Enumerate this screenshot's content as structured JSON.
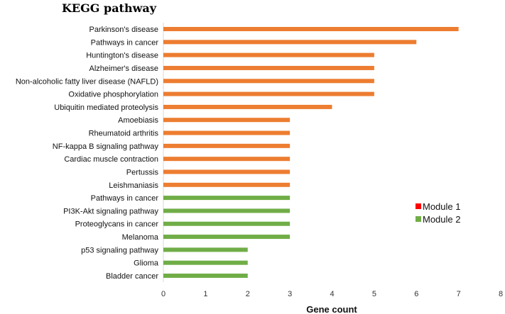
{
  "chart_data": {
    "type": "bar",
    "orientation": "horizontal",
    "title": "KEGG pathway",
    "xlabel": "Gene count",
    "ylabel": "",
    "xlim": [
      0,
      8
    ],
    "xticks": [
      0,
      1,
      2,
      3,
      4,
      5,
      6,
      7,
      8
    ],
    "grid": false,
    "legend_position": "right",
    "legend": [
      {
        "name": "Module 1",
        "color": "#ff0000"
      },
      {
        "name": "Module 2",
        "color": "#70ad47"
      }
    ],
    "bars": [
      {
        "label": "Parkinson's disease",
        "value": 7,
        "color": "#ed7d31"
      },
      {
        "label": "Pathways in cancer",
        "value": 6,
        "color": "#ed7d31"
      },
      {
        "label": "Huntington's disease",
        "value": 5,
        "color": "#ed7d31"
      },
      {
        "label": "Alzheimer's disease",
        "value": 5,
        "color": "#ed7d31"
      },
      {
        "label": "Non-alcoholic fatty liver disease (NAFLD)",
        "value": 5,
        "color": "#ed7d31"
      },
      {
        "label": "Oxidative phosphorylation",
        "value": 5,
        "color": "#ed7d31"
      },
      {
        "label": "Ubiquitin mediated proteolysis",
        "value": 4,
        "color": "#ed7d31"
      },
      {
        "label": "Amoebiasis",
        "value": 3,
        "color": "#ed7d31"
      },
      {
        "label": "Rheumatoid arthritis",
        "value": 3,
        "color": "#ed7d31"
      },
      {
        "label": "NF-kappa B signaling pathway",
        "value": 3,
        "color": "#ed7d31"
      },
      {
        "label": "Cardiac muscle contraction",
        "value": 3,
        "color": "#ed7d31"
      },
      {
        "label": "Pertussis",
        "value": 3,
        "color": "#ed7d31"
      },
      {
        "label": "Leishmaniasis",
        "value": 3,
        "color": "#ed7d31"
      },
      {
        "label": "Pathways in cancer",
        "value": 3,
        "color": "#70ad47"
      },
      {
        "label": "PI3K-Akt signaling pathway",
        "value": 3,
        "color": "#70ad47"
      },
      {
        "label": "Proteoglycans in cancer",
        "value": 3,
        "color": "#70ad47"
      },
      {
        "label": "Melanoma",
        "value": 3,
        "color": "#70ad47"
      },
      {
        "label": "p53 signaling pathway",
        "value": 2,
        "color": "#70ad47"
      },
      {
        "label": "Glioma",
        "value": 2,
        "color": "#70ad47"
      },
      {
        "label": "Bladder cancer",
        "value": 2,
        "color": "#70ad47"
      }
    ]
  }
}
